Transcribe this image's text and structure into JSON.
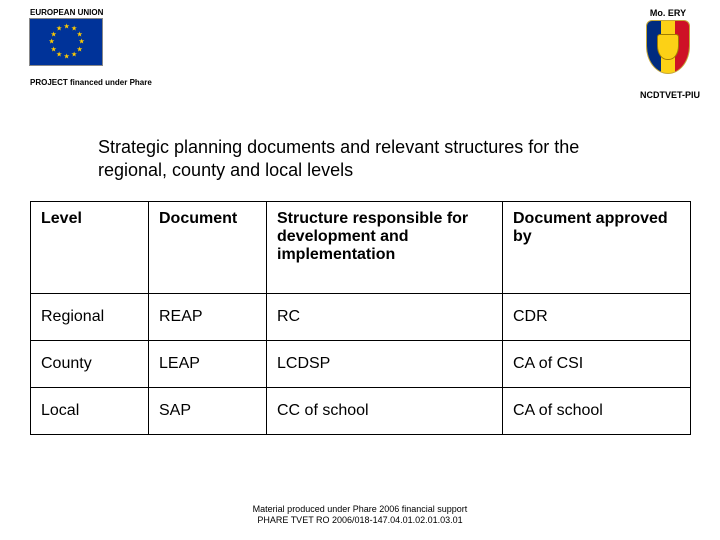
{
  "header": {
    "eu_label": "EUROPEAN UNION",
    "moery_label": "Mo. ERY",
    "project_line": "PROJECT financed under Phare",
    "ncdtvet": "NCDTVET-PIU"
  },
  "title": "Strategic planning documents and relevant structures for the regional, county and local levels",
  "table": {
    "columns": [
      "Level",
      "Document",
      "Structure responsible for development and implementation",
      "Document approved by"
    ],
    "rows": [
      [
        "Regional",
        "REAP",
        "RC",
        "CDR"
      ],
      [
        "County",
        "LEAP",
        "LCDSP",
        "CA of CSI"
      ],
      [
        "Local",
        "SAP",
        "CC of school",
        "CA of school"
      ]
    ],
    "border_color": "#000000",
    "header_fontsize": 16,
    "cell_fontsize": 16
  },
  "footer": {
    "line1": "Material produced under Phare 2006 financial support",
    "line2": "PHARE TVET RO 2006/018-147.04.01.02.01.03.01"
  },
  "colors": {
    "background": "#ffffff",
    "eu_flag_bg": "#003399",
    "eu_star": "#ffcc00",
    "ro_blue": "#002b7f",
    "ro_yellow": "#fcd116",
    "ro_red": "#ce1126"
  }
}
